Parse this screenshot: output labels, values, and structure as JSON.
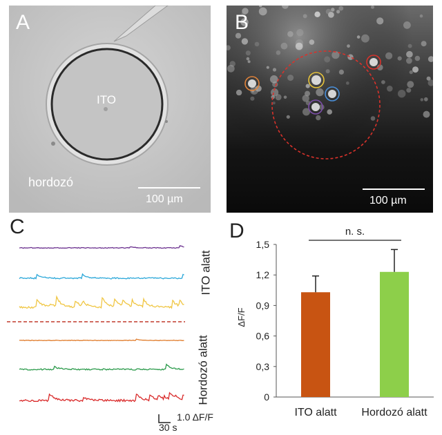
{
  "panel_a": {
    "letter": "A",
    "center_label": "ITO",
    "corner_label": "hordozó",
    "scale_label": "100 µm"
  },
  "panel_b": {
    "letter": "B",
    "scale_label": "100 µm",
    "roi_colors": [
      "#e0833a",
      "#e8c43a",
      "#4a8fd8",
      "#7d4fa8",
      "#d9322b"
    ]
  },
  "panel_c": {
    "letter": "C",
    "group_ito_label": "ITO alatt",
    "group_hordozo_label": "Hordozó alatt",
    "scale_time_label": "30 s",
    "scale_amp_label": "1.0 ΔF/F",
    "traces": [
      {
        "color": "#6a2f8e",
        "group": "ito"
      },
      {
        "color": "#2aa7d9",
        "group": "ito"
      },
      {
        "color": "#f0c643",
        "group": "ito"
      },
      {
        "color": "#e07b2a",
        "group": "hordozo"
      },
      {
        "color": "#2a9a4a",
        "group": "hordozo"
      },
      {
        "color": "#d92a2a",
        "group": "hordozo"
      }
    ],
    "divider_color": "#c0392b"
  },
  "panel_d": {
    "letter": "D",
    "significance": "n. s.",
    "chart_data": {
      "type": "bar",
      "categories": [
        "ITO alatt",
        "Hordozó alatt"
      ],
      "values": [
        1.03,
        1.23
      ],
      "errors": [
        0.16,
        0.22
      ],
      "colors": [
        "#c85412",
        "#8dcf4a"
      ],
      "ylabel": "ΔF/F",
      "ylim": [
        0,
        1.5
      ],
      "yticks": [
        "0",
        "0,3",
        "0,6",
        "0,9",
        "1,2",
        "1,5"
      ]
    }
  }
}
